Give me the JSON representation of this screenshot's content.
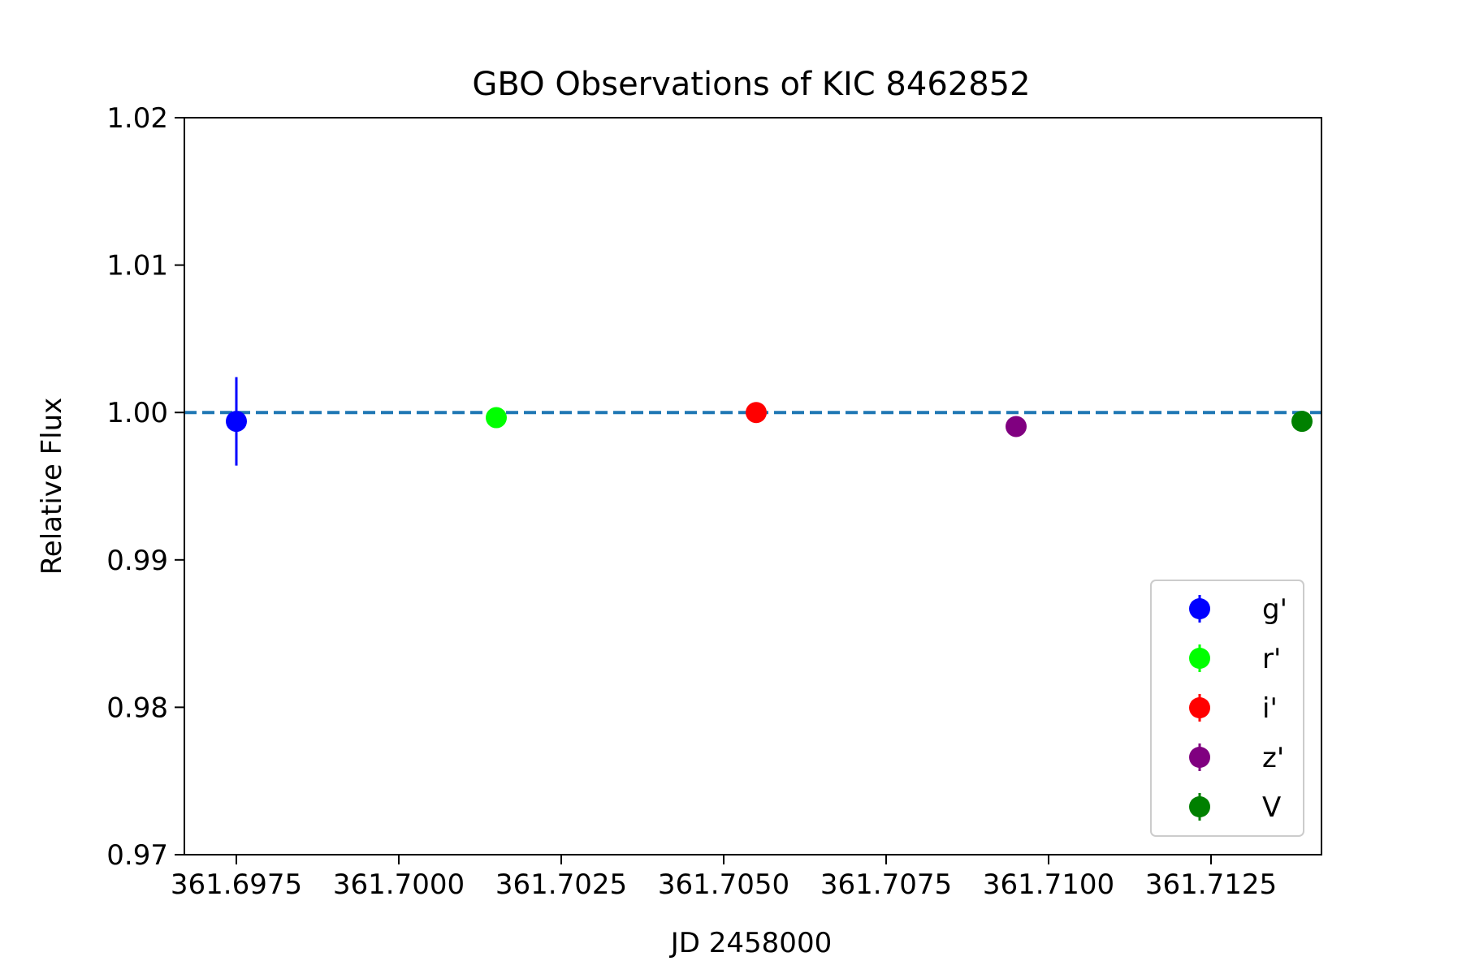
{
  "chart_data": {
    "type": "scatter",
    "title": "GBO Observations of KIC 8462852",
    "xlabel": "JD 2458000",
    "ylabel": "Relative Flux",
    "xlim": [
      361.6967,
      361.7142
    ],
    "ylim": [
      0.97,
      1.02
    ],
    "x_ticks": [
      361.6975,
      361.7,
      361.7025,
      361.705,
      361.7075,
      361.71,
      361.7125
    ],
    "x_tick_labels": [
      "361.6975",
      "361.7000",
      "361.7025",
      "361.7050",
      "361.7075",
      "361.7100",
      "361.7125"
    ],
    "y_ticks": [
      0.97,
      0.98,
      0.99,
      1.0,
      1.01,
      1.02
    ],
    "y_tick_labels": [
      "0.97",
      "0.98",
      "0.99",
      "1.00",
      "1.01",
      "1.02"
    ],
    "reference_line": {
      "y": 1.0,
      "style": "dashed",
      "color": "#1f77b4"
    },
    "grid": false,
    "legend_position": "lower-right",
    "series": [
      {
        "name": "g'",
        "color": "#0000ff",
        "x": [
          361.6975
        ],
        "y": [
          0.9994
        ],
        "yerr": [
          0.003
        ]
      },
      {
        "name": "r'",
        "color": "#00ff00",
        "x": [
          361.7015
        ],
        "y": [
          0.99965
        ],
        "yerr": [
          0.00025
        ]
      },
      {
        "name": "i'",
        "color": "#ff0000",
        "x": [
          361.7055
        ],
        "y": [
          1.0
        ],
        "yerr": [
          0.0002
        ]
      },
      {
        "name": "z'",
        "color": "#800080",
        "x": [
          361.7095
        ],
        "y": [
          0.99905
        ],
        "yerr": [
          0.0005
        ]
      },
      {
        "name": "V",
        "color": "#008000",
        "x": [
          361.7139
        ],
        "y": [
          0.9994
        ],
        "yerr": [
          0.0002
        ]
      }
    ]
  }
}
